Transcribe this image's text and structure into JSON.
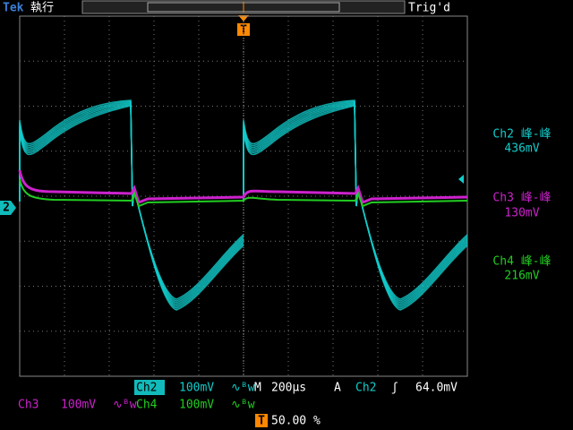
{
  "header": {
    "brand": "Tek",
    "status": "執行",
    "trigger_marker": "T",
    "trigger_state": "Trig'd"
  },
  "channel_marker": "2",
  "measurements": [
    {
      "label": "Ch2 峰-峰",
      "value": "436mV"
    },
    {
      "label": "Ch3 峰-峰",
      "value": "130mV"
    },
    {
      "label": "Ch4 峰-峰",
      "value": "216mV"
    }
  ],
  "footer": {
    "ch2": {
      "name": "Ch2",
      "scale": "100mV",
      "bw": "∿ᴮw"
    },
    "ch3": {
      "name": "Ch3",
      "scale": "100mV",
      "bw": "∿ᴮw"
    },
    "ch4": {
      "name": "Ch4",
      "scale": "100mV",
      "bw": "∿ᴮw"
    },
    "timebase": {
      "label": "M",
      "value": "200µs"
    },
    "trigger": {
      "mode": "A",
      "source": "Ch2",
      "slope": "ʃ",
      "level": "64.0mV"
    },
    "position": {
      "marker": "T",
      "value": "50.00 %"
    }
  }
}
